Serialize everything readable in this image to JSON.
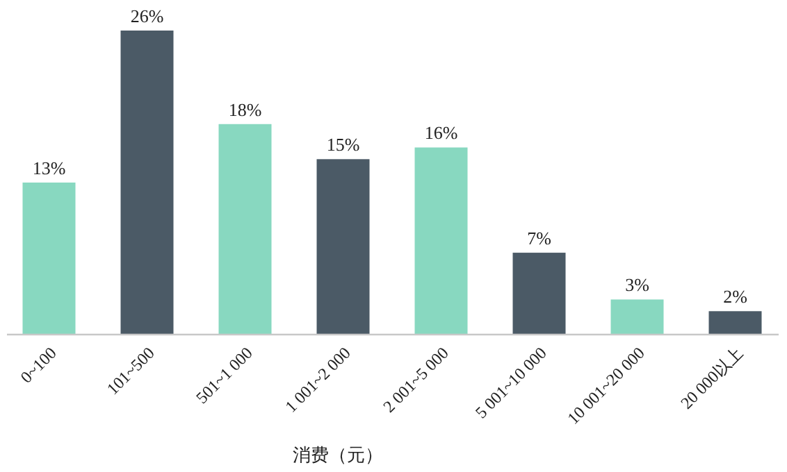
{
  "chart_data": {
    "type": "bar",
    "xlabel": "消费（元）",
    "categories": [
      "0~100",
      "101~500",
      "501~1 000",
      "1 001~2 000",
      "2 001~5 000",
      "5 001~10 000",
      "10 001~20 000",
      "20 000以上"
    ],
    "values": [
      13,
      26,
      18,
      15,
      16,
      7,
      3,
      2
    ],
    "colors": [
      "#88d8c0",
      "#4b5a66",
      "#88d8c0",
      "#4b5a66",
      "#88d8c0",
      "#4b5a66",
      "#88d8c0",
      "#4b5a66"
    ],
    "value_labels": [
      "13%",
      "26%",
      "18%",
      "15%",
      "16%",
      "7%",
      "3%",
      "2%"
    ]
  }
}
